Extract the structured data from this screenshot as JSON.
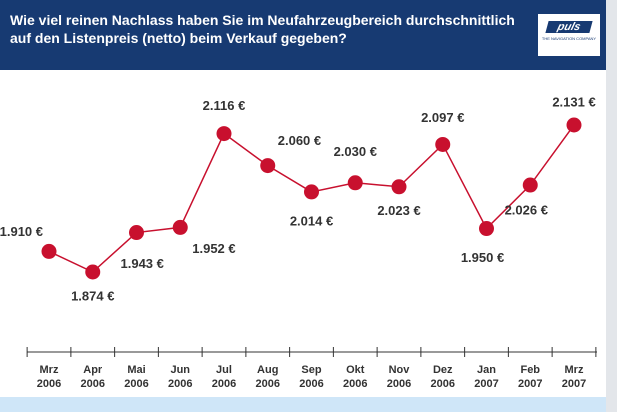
{
  "header": {
    "title": "Wie viel reinen Nachlass haben Sie im Neufahrzeugbereich durchschnittlich auf den Listenpreis (netto) beim Verkauf gegeben?"
  },
  "logo": {
    "name": "puls",
    "tagline": "The Navigation Company"
  },
  "chart_data": {
    "type": "line",
    "categories": [
      "Mrz 2006",
      "Apr 2006",
      "Mai 2006",
      "Jun 2006",
      "Jul 2006",
      "Aug 2006",
      "Sep 2006",
      "Okt 2006",
      "Nov 2006",
      "Dez 2006",
      "Jan 2007",
      "Feb 2007",
      "Mrz 2007"
    ],
    "values": [
      1910,
      1874,
      1943,
      1952,
      2116,
      2060,
      2014,
      2030,
      2023,
      2097,
      1950,
      2026,
      2131
    ],
    "value_labels": [
      "1.910 €",
      "1.874 €",
      "1.943 €",
      "1.952 €",
      "2.116 €",
      "2.060 €",
      "2.014 €",
      "2.030 €",
      "2.023 €",
      "2.097 €",
      "1.950 €",
      "2.026 €",
      "2.131 €"
    ],
    "color": "#c8102e"
  }
}
